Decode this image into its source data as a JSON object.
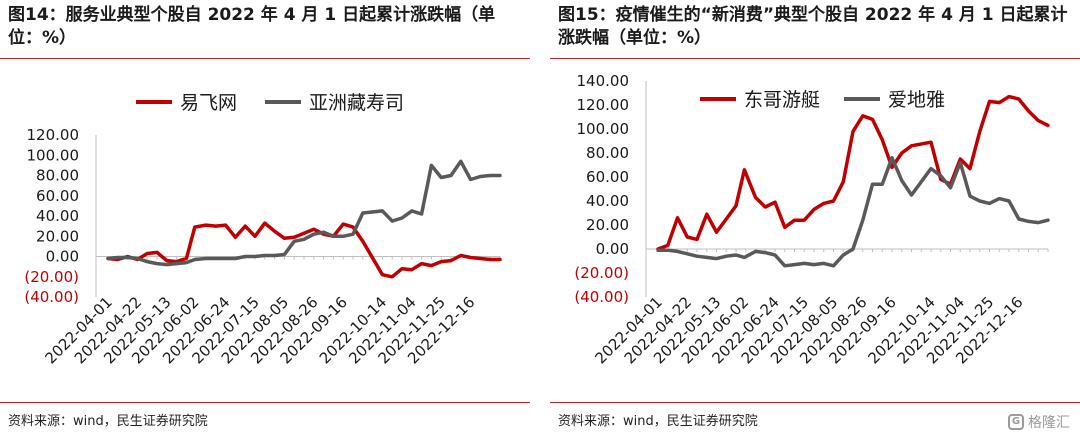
{
  "charts": [
    {
      "title": "图14：服务业典型个股自 2022 年 4 月 1 日起累计涨跌幅（单位：%）",
      "source": "资料来源：wind，民生证券研究院",
      "legend_placement": "top",
      "colors": {
        "series1": "#c00000",
        "series2": "#595959",
        "negative_labels": "#c00000"
      },
      "chart_data": {
        "type": "line",
        "ylim": [
          -40,
          120
        ],
        "yticks": [
          120,
          100,
          80,
          60,
          40,
          20,
          0,
          -20,
          -40
        ],
        "ytick_labels": [
          "120.00",
          "100.00",
          "80.00",
          "60.00",
          "40.00",
          "20.00",
          "0.00",
          "(20.00)",
          "(40.00)"
        ],
        "xlim": [
          "2022-04-01",
          "2023-01-06"
        ],
        "xtick_labels": [
          "2022-04-01",
          "2022-04-22",
          "2022-05-13",
          "2022-06-02",
          "2022-06-24",
          "2022-07-15",
          "2022-08-05",
          "2022-08-26",
          "2022-09-16",
          "2022-10-14",
          "2022-11-04",
          "2022-11-25",
          "2022-12-16"
        ],
        "grid": false,
        "series": [
          {
            "name": "易飞网",
            "x": [
              "2022-04-01",
              "2022-04-08",
              "2022-04-15",
              "2022-04-22",
              "2022-04-29",
              "2022-05-06",
              "2022-05-13",
              "2022-05-20",
              "2022-05-27",
              "2022-06-02",
              "2022-06-10",
              "2022-06-17",
              "2022-06-24",
              "2022-07-01",
              "2022-07-08",
              "2022-07-15",
              "2022-07-22",
              "2022-07-29",
              "2022-08-05",
              "2022-08-12",
              "2022-08-19",
              "2022-08-26",
              "2022-09-02",
              "2022-09-09",
              "2022-09-16",
              "2022-09-23",
              "2022-09-30",
              "2022-10-14",
              "2022-10-21",
              "2022-10-28",
              "2022-11-04",
              "2022-11-11",
              "2022-11-18",
              "2022-11-25",
              "2022-12-02",
              "2022-12-09",
              "2022-12-16",
              "2022-12-23",
              "2022-12-30",
              "2023-01-06"
            ],
            "y": [
              -2,
              -3,
              0,
              -3,
              3,
              4,
              -4,
              -5,
              -2,
              29,
              31,
              30,
              31,
              19,
              30,
              20,
              33,
              25,
              18,
              19,
              23,
              27,
              22,
              20,
              32,
              29,
              15,
              -18,
              -20,
              -12,
              -13,
              -7,
              -9,
              -5,
              -4,
              1,
              -1,
              -2,
              -3,
              -3
            ]
          },
          {
            "name": "亚洲藏寿司",
            "x": [
              "2022-04-01",
              "2022-04-08",
              "2022-04-15",
              "2022-04-22",
              "2022-04-29",
              "2022-05-06",
              "2022-05-13",
              "2022-05-20",
              "2022-05-27",
              "2022-06-02",
              "2022-06-10",
              "2022-06-17",
              "2022-06-24",
              "2022-07-01",
              "2022-07-08",
              "2022-07-15",
              "2022-07-22",
              "2022-07-29",
              "2022-08-05",
              "2022-08-12",
              "2022-08-19",
              "2022-08-26",
              "2022-09-02",
              "2022-09-09",
              "2022-09-16",
              "2022-09-23",
              "2022-09-30",
              "2022-10-14",
              "2022-10-21",
              "2022-10-28",
              "2022-11-04",
              "2022-11-11",
              "2022-11-18",
              "2022-11-25",
              "2022-12-02",
              "2022-12-09",
              "2022-12-16",
              "2022-12-23",
              "2022-12-30",
              "2023-01-06"
            ],
            "y": [
              -2,
              -1,
              -1,
              -2,
              -5,
              -7,
              -8,
              -7,
              -6,
              -3,
              -2,
              -2,
              -2,
              -2,
              0,
              0,
              1,
              1,
              2,
              15,
              17,
              22,
              24,
              20,
              20,
              22,
              43,
              45,
              35,
              38,
              45,
              42,
              90,
              78,
              80,
              94,
              76,
              79,
              80,
              80
            ]
          }
        ]
      }
    },
    {
      "title": "图15：疫情催生的“新消费”典型个股自 2022 年 4 月 1 日起累计涨跌幅（单位：%）",
      "source": "资料来源：wind，民生证券研究院",
      "legend_placement": "top",
      "colors": {
        "series1": "#c00000",
        "series2": "#595959",
        "negative_labels": "#c00000"
      },
      "watermark": "格隆汇",
      "chart_data": {
        "type": "line",
        "ylim": [
          -40,
          140
        ],
        "yticks": [
          140,
          120,
          100,
          80,
          60,
          40,
          20,
          0,
          -20,
          -40
        ],
        "ytick_labels": [
          "140.00",
          "120.00",
          "100.00",
          "80.00",
          "60.00",
          "40.00",
          "20.00",
          "0.00",
          "(20.00)",
          "(40.00)"
        ],
        "xlim": [
          "2022-04-01",
          "2023-01-06"
        ],
        "xtick_labels": [
          "2022-04-01",
          "2022-04-22",
          "2022-05-13",
          "2022-06-02",
          "2022-06-24",
          "2022-07-15",
          "2022-08-05",
          "2022-08-26",
          "2022-09-16",
          "2022-10-14",
          "2022-11-04",
          "2022-11-25",
          "2022-12-16"
        ],
        "grid": false,
        "series": [
          {
            "name": "东哥游艇",
            "x": [
              "2022-04-01",
              "2022-04-08",
              "2022-04-15",
              "2022-04-22",
              "2022-04-29",
              "2022-05-06",
              "2022-05-13",
              "2022-05-20",
              "2022-05-27",
              "2022-06-02",
              "2022-06-10",
              "2022-06-17",
              "2022-06-24",
              "2022-07-01",
              "2022-07-08",
              "2022-07-15",
              "2022-07-22",
              "2022-07-29",
              "2022-08-05",
              "2022-08-12",
              "2022-08-19",
              "2022-08-26",
              "2022-09-02",
              "2022-09-09",
              "2022-09-16",
              "2022-09-23",
              "2022-09-30",
              "2022-10-14",
              "2022-10-21",
              "2022-10-28",
              "2022-11-04",
              "2022-11-11",
              "2022-11-18",
              "2022-11-25",
              "2022-12-02",
              "2022-12-09",
              "2022-12-16",
              "2022-12-23",
              "2022-12-30",
              "2023-01-06"
            ],
            "y": [
              0,
              3,
              26,
              10,
              8,
              29,
              14,
              25,
              36,
              66,
              43,
              35,
              39,
              18,
              24,
              24,
              33,
              38,
              40,
              56,
              98,
              111,
              108,
              91,
              68,
              80,
              86,
              89,
              58,
              54,
              75,
              67,
              98,
              123,
              122,
              127,
              125,
              115,
              107,
              103
            ]
          },
          {
            "name": "爱地雅",
            "x": [
              "2022-04-01",
              "2022-04-08",
              "2022-04-15",
              "2022-04-22",
              "2022-04-29",
              "2022-05-06",
              "2022-05-13",
              "2022-05-20",
              "2022-05-27",
              "2022-06-02",
              "2022-06-10",
              "2022-06-17",
              "2022-06-24",
              "2022-07-01",
              "2022-07-08",
              "2022-07-15",
              "2022-07-22",
              "2022-07-29",
              "2022-08-05",
              "2022-08-12",
              "2022-08-19",
              "2022-08-26",
              "2022-09-02",
              "2022-09-09",
              "2022-09-16",
              "2022-09-23",
              "2022-09-30",
              "2022-10-14",
              "2022-10-21",
              "2022-10-28",
              "2022-11-04",
              "2022-11-11",
              "2022-11-18",
              "2022-11-25",
              "2022-12-02",
              "2022-12-09",
              "2022-12-16",
              "2022-12-23",
              "2022-12-30",
              "2023-01-06"
            ],
            "y": [
              -1,
              -1,
              -2,
              -4,
              -6,
              -7,
              -8,
              -6,
              -5,
              -7,
              -2,
              -3,
              -5,
              -14,
              -13,
              -12,
              -13,
              -12,
              -14,
              -5,
              0,
              24,
              54,
              54,
              76,
              57,
              45,
              67,
              61,
              51,
              72,
              44,
              40,
              38,
              42,
              40,
              25,
              23,
              22,
              24
            ]
          }
        ]
      }
    }
  ]
}
